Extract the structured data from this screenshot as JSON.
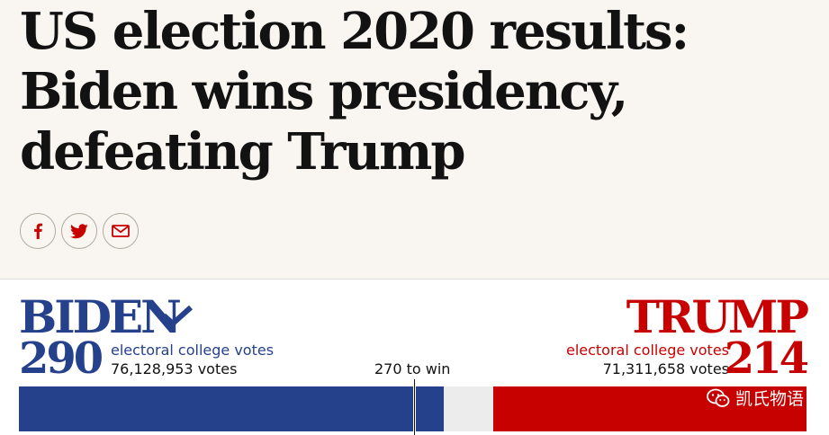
{
  "headline": {
    "lines": [
      "US election 2020 results:",
      "Biden wins presidency,",
      "defeating Trump"
    ]
  },
  "share": {
    "items": [
      {
        "icon": "facebook-icon"
      },
      {
        "icon": "twitter-icon"
      },
      {
        "icon": "email-icon"
      }
    ],
    "color": "#c70000"
  },
  "results": {
    "biden": {
      "name": "BIDEN",
      "electoral_votes": 290,
      "electoral_label": "electoral college votes",
      "popular_votes": "76,128,953 votes",
      "color": "#25418c",
      "winner": true
    },
    "trump": {
      "name": "TRUMP",
      "electoral_votes": 214,
      "electoral_label": "electoral college votes",
      "popular_votes": "71,311,658 votes",
      "color": "#c70000"
    },
    "to_win_label": "270 to win",
    "to_win_value": 270,
    "total_electoral_votes": 538
  },
  "watermark": {
    "text": "凯氏物语",
    "icon": "wechat-icon"
  }
}
